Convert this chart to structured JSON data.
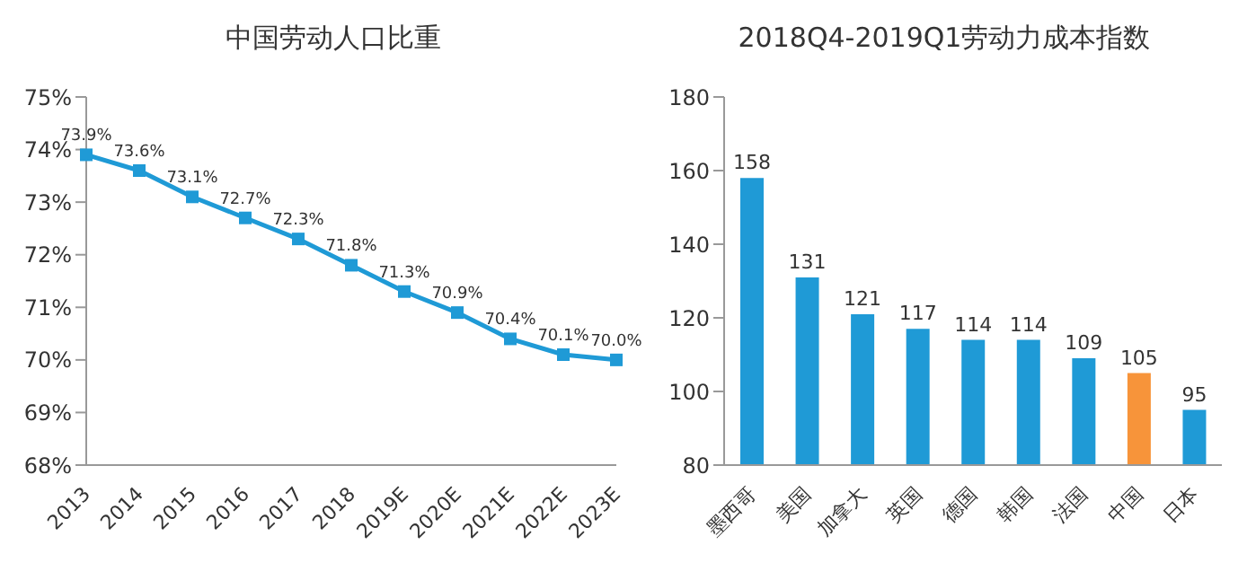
{
  "chart_data": [
    {
      "type": "line",
      "title": "中国劳动人口比重",
      "categories": [
        "2013",
        "2014",
        "2015",
        "2016",
        "2017",
        "2018",
        "2019E",
        "2020E",
        "2021E",
        "2022E",
        "2023E"
      ],
      "values": [
        73.9,
        73.6,
        73.1,
        72.7,
        72.3,
        71.8,
        71.3,
        70.9,
        70.4,
        70.1,
        70.0
      ],
      "value_labels": [
        "73.9%",
        "73.6%",
        "73.1%",
        "72.7%",
        "72.3%",
        "71.8%",
        "71.3%",
        "70.9%",
        "70.4%",
        "70.1%",
        "70.0%"
      ],
      "color": "#1f9ad6",
      "marker": "square",
      "ylim": [
        68,
        75
      ],
      "yticks": [
        {
          "value": 68,
          "label": "68%"
        },
        {
          "value": 69,
          "label": "69%"
        },
        {
          "value": 70,
          "label": "70%"
        },
        {
          "value": 71,
          "label": "71%"
        },
        {
          "value": 72,
          "label": "72%"
        },
        {
          "value": 73,
          "label": "73%"
        },
        {
          "value": 74,
          "label": "74%"
        },
        {
          "value": 75,
          "label": "75%"
        }
      ]
    },
    {
      "type": "bar",
      "title": "2018Q4-2019Q1劳动力成本指数",
      "categories": [
        "墨西哥",
        "美国",
        "加拿大",
        "英国",
        "德国",
        "韩国",
        "法国",
        "中国",
        "日本"
      ],
      "values": [
        158,
        131,
        121,
        117,
        114,
        114,
        109,
        105,
        95
      ],
      "colors": [
        "#1f9ad6",
        "#1f9ad6",
        "#1f9ad6",
        "#1f9ad6",
        "#1f9ad6",
        "#1f9ad6",
        "#1f9ad6",
        "#f7943a",
        "#1f9ad6"
      ],
      "data_labels": true,
      "ylim": [
        80,
        180
      ],
      "yticks": [
        80,
        100,
        120,
        140,
        160,
        180
      ]
    }
  ]
}
